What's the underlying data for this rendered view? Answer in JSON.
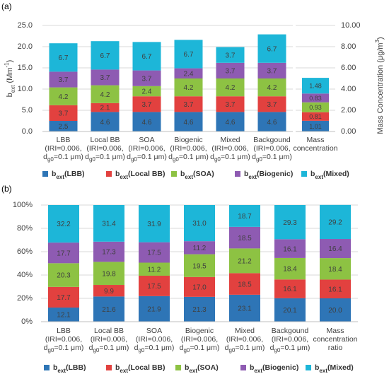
{
  "chart_data": [
    {
      "type": "stacked_bar",
      "panel_label": "(a)",
      "ylabel": {
        "base": "b",
        "sub": "ext",
        "rest": " (Mm",
        "sup": "-1",
        "end": ")"
      },
      "y2label": {
        "text": "Mass Concentration (μg/m",
        "sup": "3",
        "end": ")"
      },
      "legend_symbol": {
        "base": "b",
        "sub": "ext"
      },
      "categories": [
        {
          "name": "LBB",
          "note": {
            "line1": "(IRI=0.006,",
            "d": "d",
            "sub": "g0",
            "rest": "=0.1  μm)"
          }
        },
        {
          "name": "Local BB",
          "note": {
            "line1": "(IRI=0.006,",
            "d": "d",
            "sub": "g0",
            "rest": "=0.1  μm)"
          }
        },
        {
          "name": "SOA",
          "note": {
            "line1": "(IRI=0.006,",
            "d": "d",
            "sub": "g0",
            "rest": "=0.1  μm)"
          }
        },
        {
          "name": "Biogenic",
          "note": {
            "line1": "(IRI=0.006,",
            "d": "d",
            "sub": "g0",
            "rest": "=0.1  μm)"
          }
        },
        {
          "name": "Mixed",
          "note": {
            "line1": "(IRI=0.006,",
            "d": "d",
            "sub": "g0",
            "rest": "=0.1  μm)"
          }
        },
        {
          "name": "Backgound",
          "note": {
            "line1": "(IRI=0.006,",
            "d": "d",
            "sub": "g0",
            "rest": "=0.1  μm)"
          }
        }
      ],
      "series": [
        {
          "name": "(LBB)",
          "color": "#2e75b6",
          "values": [
            2.5,
            4.6,
            4.6,
            4.6,
            4.6,
            4.6
          ]
        },
        {
          "name": "(Local BB)",
          "color": "#e2413f",
          "values": [
            3.7,
            2.1,
            3.7,
            3.7,
            3.7,
            3.7
          ]
        },
        {
          "name": "(SOA)",
          "color": "#8dc243",
          "values": [
            4.2,
            4.2,
            2.4,
            4.2,
            4.2,
            4.2
          ]
        },
        {
          "name": "(Biogenic)",
          "color": "#8e5bb2",
          "values": [
            3.7,
            3.7,
            3.7,
            2.4,
            3.7,
            3.7
          ]
        },
        {
          "name": "(Mixed)",
          "color": "#1db6d8",
          "values": [
            6.7,
            6.7,
            6.7,
            6.7,
            3.7,
            6.7
          ]
        }
      ],
      "mass": {
        "category": {
          "name": "Mass concentration"
        },
        "axis": "y2",
        "values": [
          1.01,
          0.81,
          0.93,
          0.83,
          1.48
        ]
      },
      "ylim": [
        0,
        25
      ],
      "yticks": [
        {
          "value": 0,
          "label": "0.0"
        },
        {
          "value": 5,
          "label": "5.0"
        },
        {
          "value": 10,
          "label": "10.0"
        },
        {
          "value": 15,
          "label": "15.0"
        },
        {
          "value": 20,
          "label": "20.0"
        },
        {
          "value": 25,
          "label": "25.0"
        }
      ],
      "y2lim": [
        0,
        10
      ],
      "y2ticks": [
        {
          "value": 0,
          "label": "0.00"
        },
        {
          "value": 2,
          "label": "2.00"
        },
        {
          "value": 4,
          "label": "4.00"
        },
        {
          "value": 6,
          "label": "6.00"
        },
        {
          "value": 8,
          "label": "8.00"
        },
        {
          "value": 10,
          "label": "10.00"
        }
      ],
      "grid": true
    },
    {
      "type": "stacked_bar",
      "panel_label": "(b)",
      "legend_symbol": {
        "base": "b",
        "sub": "ext"
      },
      "categories": [
        {
          "name": "LBB",
          "note": {
            "line1": "(IRI=0.006,",
            "d": "d",
            "sub": "g0",
            "rest": "=0.1  μm)"
          }
        },
        {
          "name": "Local BB",
          "note": {
            "line1": "(IRI=0.006,",
            "d": "d",
            "sub": "g0",
            "rest": "=0.1  μm)"
          }
        },
        {
          "name": "SOA",
          "note": {
            "line1": "(IRI=0.006,",
            "d": "d",
            "sub": "g0",
            "rest": "=0.1  μm)"
          }
        },
        {
          "name": "Biogenic",
          "note": {
            "line1": "(IRI=0.006,",
            "d": "d",
            "sub": "g0",
            "rest": "=0.1  μm)"
          }
        },
        {
          "name": "Mixed",
          "note": {
            "line1": "(IRI=0.006,",
            "d": "d",
            "sub": "g0",
            "rest": "=0.1  μm)"
          }
        },
        {
          "name": "Backgound",
          "note": {
            "line1": "(IRI=0.006,",
            "d": "d",
            "sub": "g0",
            "rest": "=0.1  μm)"
          }
        },
        {
          "name": "Mass concentration ratio"
        }
      ],
      "series": [
        {
          "name": "(LBB)",
          "color": "#2e75b6",
          "values": [
            12.1,
            21.6,
            21.9,
            21.3,
            23.1,
            20.1,
            20.0
          ],
          "value_labels": [
            "12.1",
            "21.6",
            "21.9",
            "21.3",
            "23.1",
            "20.1",
            "20.0"
          ]
        },
        {
          "name": "(Local BB)",
          "color": "#e2413f",
          "values": [
            17.7,
            9.9,
            17.5,
            17.0,
            18.5,
            16.1,
            16.1
          ],
          "value_labels": [
            "17.7",
            "9.9",
            "17.5",
            "17.0",
            "18.5",
            "16.1",
            "16.1"
          ]
        },
        {
          "name": "(SOA)",
          "color": "#8dc243",
          "values": [
            20.3,
            19.8,
            11.2,
            19.5,
            21.2,
            18.4,
            18.4
          ],
          "value_labels": [
            "20.3",
            "19.8",
            "11.2",
            "19.5",
            "21.2",
            "18.4",
            "18.4"
          ]
        },
        {
          "name": "(Biogenic)",
          "color": "#8e5bb2",
          "values": [
            17.7,
            17.3,
            17.5,
            11.2,
            18.5,
            16.1,
            16.4
          ],
          "value_labels": [
            "17.7",
            "17.3",
            "17.5",
            "11.2",
            "18.5",
            "16.1",
            "16.4"
          ]
        },
        {
          "name": "(Mixed)",
          "color": "#1db6d8",
          "values": [
            32.2,
            31.4,
            31.9,
            31.0,
            18.7,
            29.3,
            29.2
          ],
          "value_labels": [
            "32.2",
            "31.4",
            "31.9",
            "31.0",
            "18.7",
            "29.3",
            "29.2"
          ]
        }
      ],
      "ylim": [
        0,
        100
      ],
      "yticks": [
        {
          "value": 0,
          "label": "0%"
        },
        {
          "value": 20,
          "label": "20%"
        },
        {
          "value": 40,
          "label": "40%"
        },
        {
          "value": 60,
          "label": "60%"
        },
        {
          "value": 80,
          "label": "80%"
        },
        {
          "value": 100,
          "label": "100%"
        }
      ],
      "grid": true
    }
  ]
}
